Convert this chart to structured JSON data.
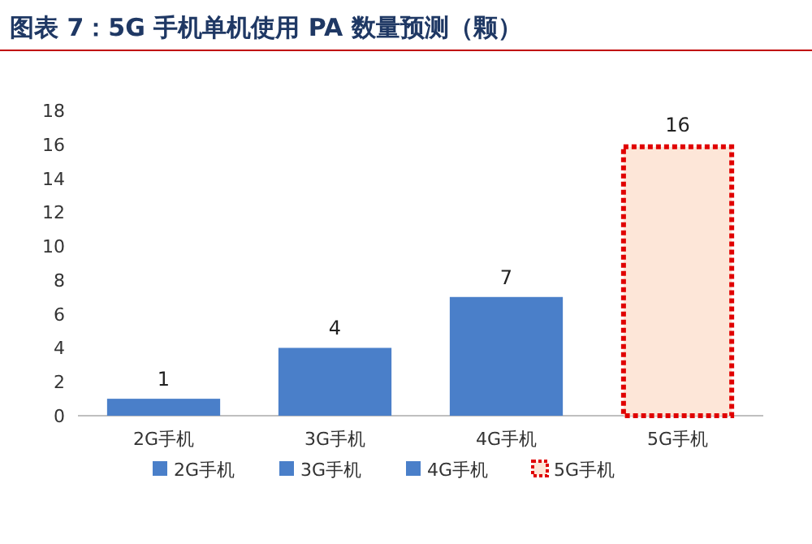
{
  "chart_data": {
    "type": "bar",
    "title": "图表 7：5G 手机单机使用 PA 数量预测（颗）",
    "categories": [
      "2G手机",
      "3G手机",
      "4G手机",
      "5G手机"
    ],
    "series": [
      {
        "name": "2G手机",
        "color": "#4a7fc9",
        "values": [
          1,
          null,
          null,
          null
        ]
      },
      {
        "name": "3G手机",
        "color": "#4a7fc9",
        "values": [
          null,
          4,
          null,
          null
        ]
      },
      {
        "name": "4G手机",
        "color": "#4a7fc9",
        "values": [
          null,
          null,
          7,
          null
        ]
      },
      {
        "name": "5G手机",
        "color": "#e00000",
        "line_style": "dotted",
        "values": [
          null,
          null,
          null,
          16
        ]
      }
    ],
    "data_labels": true,
    "ylim": [
      0,
      18
    ],
    "yticks": [
      0,
      2,
      4,
      6,
      8,
      10,
      12,
      14,
      16,
      18
    ],
    "legend": "bottom",
    "grid": false
  }
}
